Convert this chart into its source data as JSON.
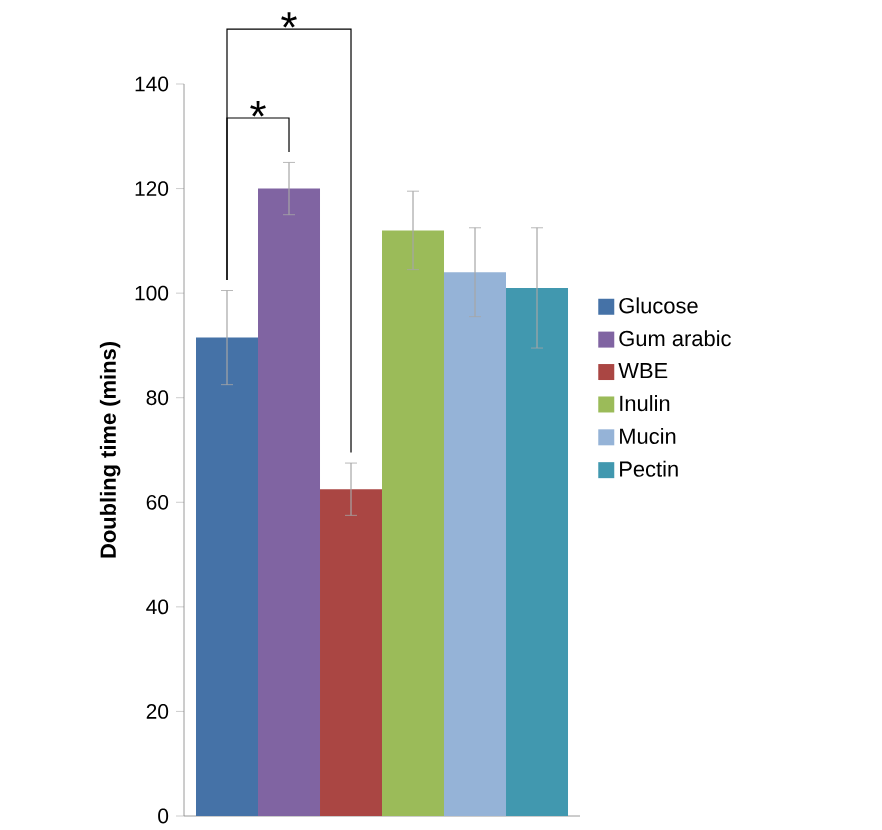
{
  "chart_data": {
    "type": "bar",
    "ylabel": "Doubling time (mins)",
    "categories": [
      null
    ],
    "series": [
      {
        "name": "Glucose",
        "color": "#4572a7",
        "values": [
          91.5
        ],
        "errors": [
          9
        ]
      },
      {
        "name": "Gum arabic",
        "color": "#8064a2",
        "values": [
          120
        ],
        "errors": [
          5
        ]
      },
      {
        "name": "WBE",
        "color": "#aa4643",
        "values": [
          62.5
        ],
        "errors": [
          5
        ]
      },
      {
        "name": "Inulin",
        "color": "#9bbb59",
        "values": [
          112
        ],
        "errors": [
          7.5
        ]
      },
      {
        "name": "Mucin",
        "color": "#95b3d7",
        "values": [
          104
        ],
        "errors": [
          8.5
        ]
      },
      {
        "name": "Pectin",
        "color": "#4198af",
        "values": [
          101
        ],
        "errors": [
          11.5
        ]
      }
    ],
    "ylim": [
      0,
      140
    ],
    "yticks": [
      0,
      20,
      40,
      60,
      80,
      100,
      120,
      140
    ],
    "legend": "right",
    "grid": false,
    "annotations": [
      "*",
      "*"
    ]
  }
}
